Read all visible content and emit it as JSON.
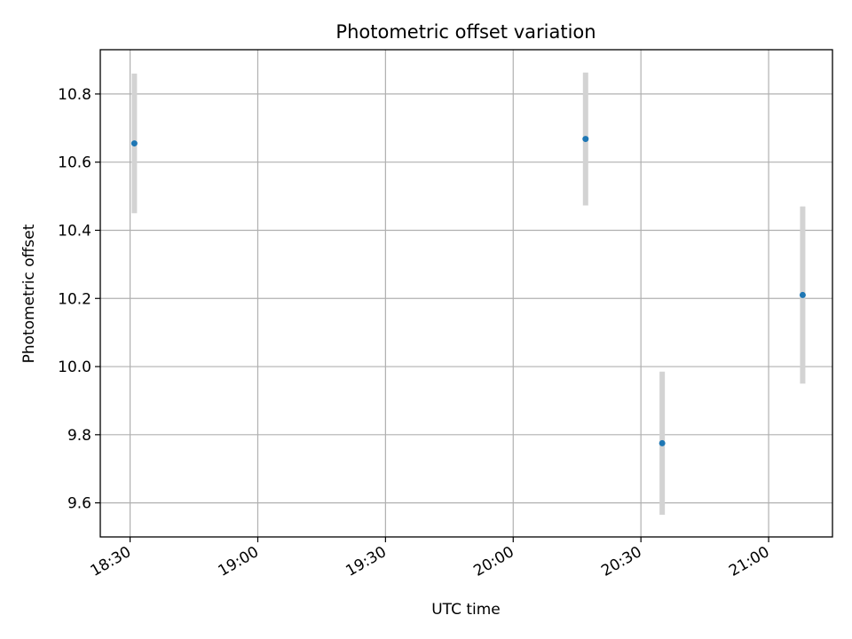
{
  "chart_data": {
    "type": "scatter",
    "title": "Photometric offset variation",
    "xlabel": "UTC time",
    "ylabel": "Photometric offset",
    "x_scale": "time",
    "x_range": [
      "18:23",
      "21:15"
    ],
    "ylim": [
      9.5,
      10.93
    ],
    "x_ticks": [
      "18:30",
      "19:00",
      "19:30",
      "20:00",
      "20:30",
      "21:00"
    ],
    "y_ticks": [
      9.6,
      9.8,
      10.0,
      10.2,
      10.4,
      10.6,
      10.8
    ],
    "y_tick_labels": [
      "9.6",
      "9.8",
      "10.0",
      "10.2",
      "10.4",
      "10.6",
      "10.8"
    ],
    "grid": true,
    "series": [
      {
        "x": [
          "18:31",
          "20:17",
          "20:35",
          "21:08"
        ],
        "y": [
          10.655,
          10.668,
          9.775,
          10.21
        ],
        "yerr": [
          0.205,
          0.195,
          0.21,
          0.26
        ]
      }
    ],
    "colors": {
      "marker": "#1f77b4",
      "errorbar": "#d3d3d3",
      "grid": "#b0b0b0",
      "axes": "#000000"
    }
  }
}
